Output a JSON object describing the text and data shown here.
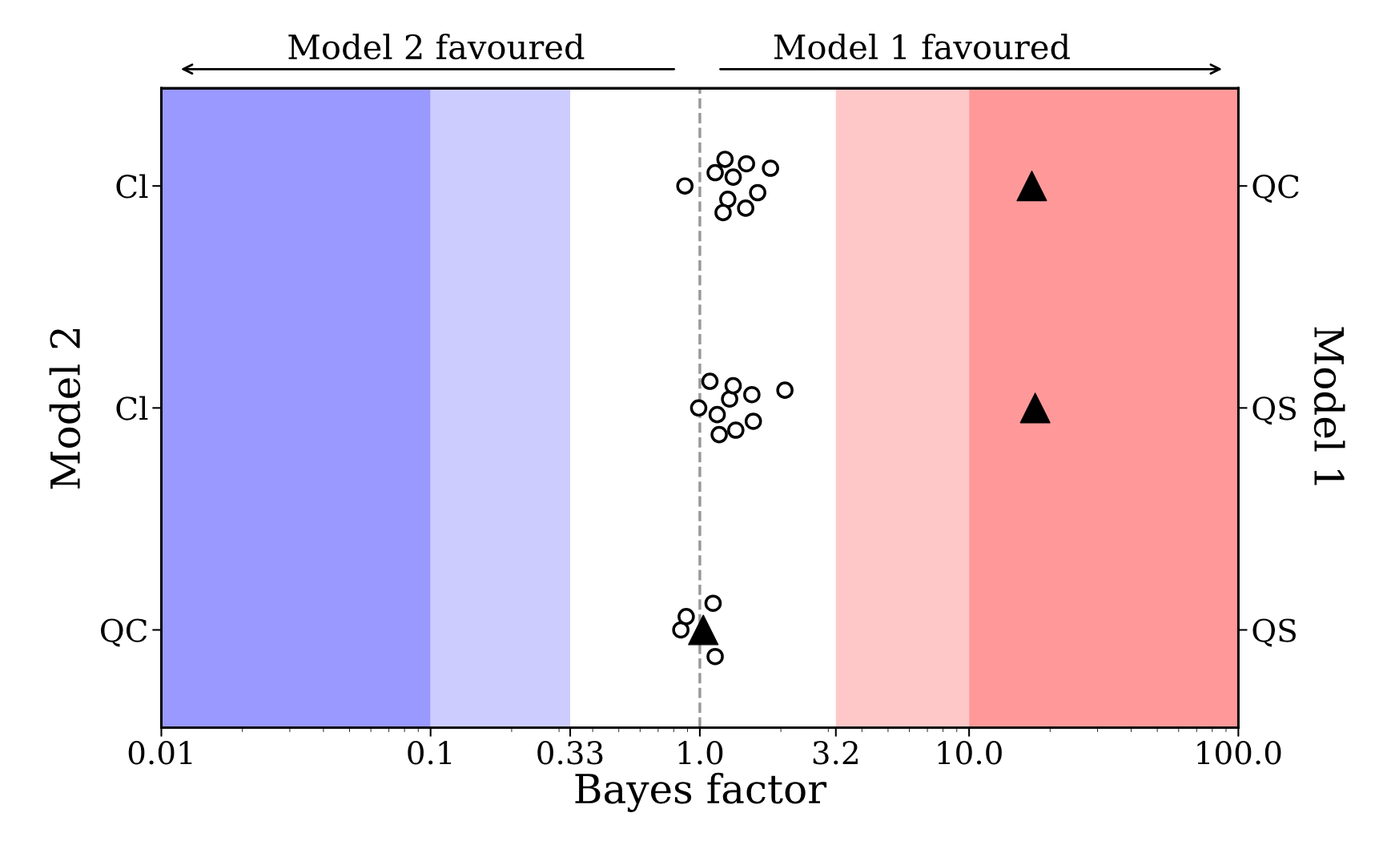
{
  "chart_data": {
    "type": "scatter",
    "orientation": "horizontal",
    "xlabel": "Bayes factor",
    "ylabel": "Model 2",
    "y2label": "Model 1",
    "log": "x",
    "grid": false,
    "xlim": [
      0.01,
      100.0
    ],
    "xticks": [
      0.01,
      0.1,
      0.33,
      {
        "value": 1,
        "label": "1.0"
      },
      3.2,
      {
        "value": 10,
        "label": "10.0"
      },
      {
        "value": 100,
        "label": "100.0"
      }
    ],
    "categories": [
      "Cl",
      "Cl",
      "QC"
    ],
    "y2_categories": [
      "QC",
      "QS",
      "QS"
    ],
    "series": [
      {
        "marker": "circle",
        "color": "#ffffff",
        "values": [
          0.88,
          0.99,
          0.85
        ]
      },
      {
        "marker": "circle",
        "color": "#ffffff",
        "values": [
          1.14,
          1.56,
          0.89
        ]
      },
      {
        "marker": "circle",
        "color": "#ffffff",
        "values": [
          1.27,
          1.58,
          null
        ]
      },
      {
        "marker": "circle",
        "color": "#ffffff",
        "values": [
          1.24,
          1.09,
          1.12
        ]
      },
      {
        "marker": "circle",
        "color": "#ffffff",
        "values": [
          1.22,
          1.18,
          1.14
        ]
      },
      {
        "marker": "circle",
        "color": "#ffffff",
        "values": [
          1.33,
          1.29,
          null
        ]
      },
      {
        "marker": "circle",
        "color": "#ffffff",
        "values": [
          1.48,
          1.36,
          null
        ]
      },
      {
        "marker": "circle",
        "color": "#ffffff",
        "values": [
          1.49,
          1.33,
          null
        ]
      },
      {
        "marker": "circle",
        "color": "#ffffff",
        "values": [
          1.64,
          1.16,
          null
        ]
      },
      {
        "marker": "circle",
        "color": "#ffffff",
        "values": [
          1.83,
          2.07,
          null
        ]
      },
      {
        "marker": "triangle",
        "color": "#000000",
        "values": [
          17.1,
          17.6,
          1.03
        ]
      }
    ],
    "bands": [
      {
        "axis": "x",
        "from": 0.01,
        "to": 0.1,
        "color": "#9999ff"
      },
      {
        "axis": "x",
        "from": 0.1,
        "to": 0.33,
        "color": "#ccccff"
      },
      {
        "axis": "x",
        "from": 3.2,
        "to": 10,
        "color": "#ffc8c8"
      },
      {
        "axis": "x",
        "from": 10,
        "to": 100,
        "color": "#ff9999"
      }
    ],
    "ref_lines": [
      {
        "axis": "x",
        "value": 1,
        "color": "#999999",
        "line_style": "dashed"
      }
    ],
    "annotations": [
      "Model 2 favoured",
      "Model 1 favoured"
    ]
  }
}
